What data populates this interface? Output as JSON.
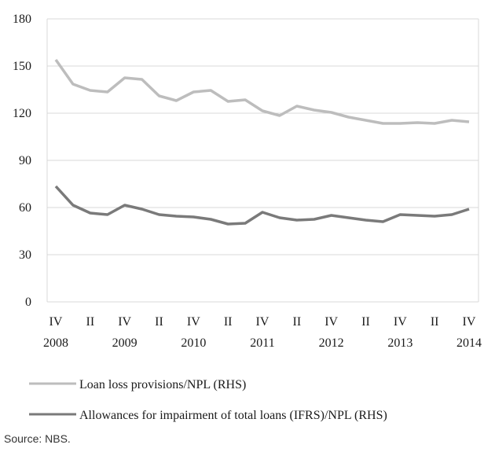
{
  "chart_data": {
    "type": "line",
    "ylim": [
      0,
      180
    ],
    "y_ticks": [
      0,
      30,
      60,
      90,
      120,
      150,
      180
    ],
    "x_tick_labels": [
      {
        "index": 0,
        "quarter": "IV",
        "year": "2008"
      },
      {
        "index": 2,
        "quarter": "II",
        "year": ""
      },
      {
        "index": 4,
        "quarter": "IV",
        "year": "2009"
      },
      {
        "index": 6,
        "quarter": "II",
        "year": ""
      },
      {
        "index": 8,
        "quarter": "IV",
        "year": "2010"
      },
      {
        "index": 10,
        "quarter": "II",
        "year": ""
      },
      {
        "index": 12,
        "quarter": "IV",
        "year": "2011"
      },
      {
        "index": 14,
        "quarter": "II",
        "year": ""
      },
      {
        "index": 16,
        "quarter": "IV",
        "year": "2012"
      },
      {
        "index": 18,
        "quarter": "II",
        "year": ""
      },
      {
        "index": 20,
        "quarter": "IV",
        "year": "2013"
      },
      {
        "index": 22,
        "quarter": "II",
        "year": ""
      },
      {
        "index": 24,
        "quarter": "IV",
        "year": "2014"
      }
    ],
    "grid": "horizontal",
    "legend_position": "bottom",
    "series": [
      {
        "name": "Loan loss provisions/NPL (RHS)",
        "color": "#bdbdbd",
        "values": [
          154,
          138.5,
          134.5,
          133.5,
          142.5,
          141.5,
          131,
          128,
          133.5,
          134.5,
          127.5,
          128.5,
          121.5,
          118.5,
          124.5,
          122,
          120.5,
          117.5,
          115.5,
          113.5,
          113.5,
          114,
          113.5,
          115.5,
          114.5
        ]
      },
      {
        "name": "Allowances for impairment of total loans (IFRS)/NPL (RHS)",
        "color": "#7a7a7a",
        "values": [
          73.5,
          61.5,
          56.5,
          55.5,
          61.5,
          59,
          55.5,
          54.5,
          54,
          52.5,
          49.5,
          50,
          57,
          53.5,
          52,
          52.5,
          55,
          53.5,
          52,
          51,
          55.5,
          55,
          54.5,
          55.5,
          59
        ]
      }
    ]
  },
  "source": "Source: NBS."
}
